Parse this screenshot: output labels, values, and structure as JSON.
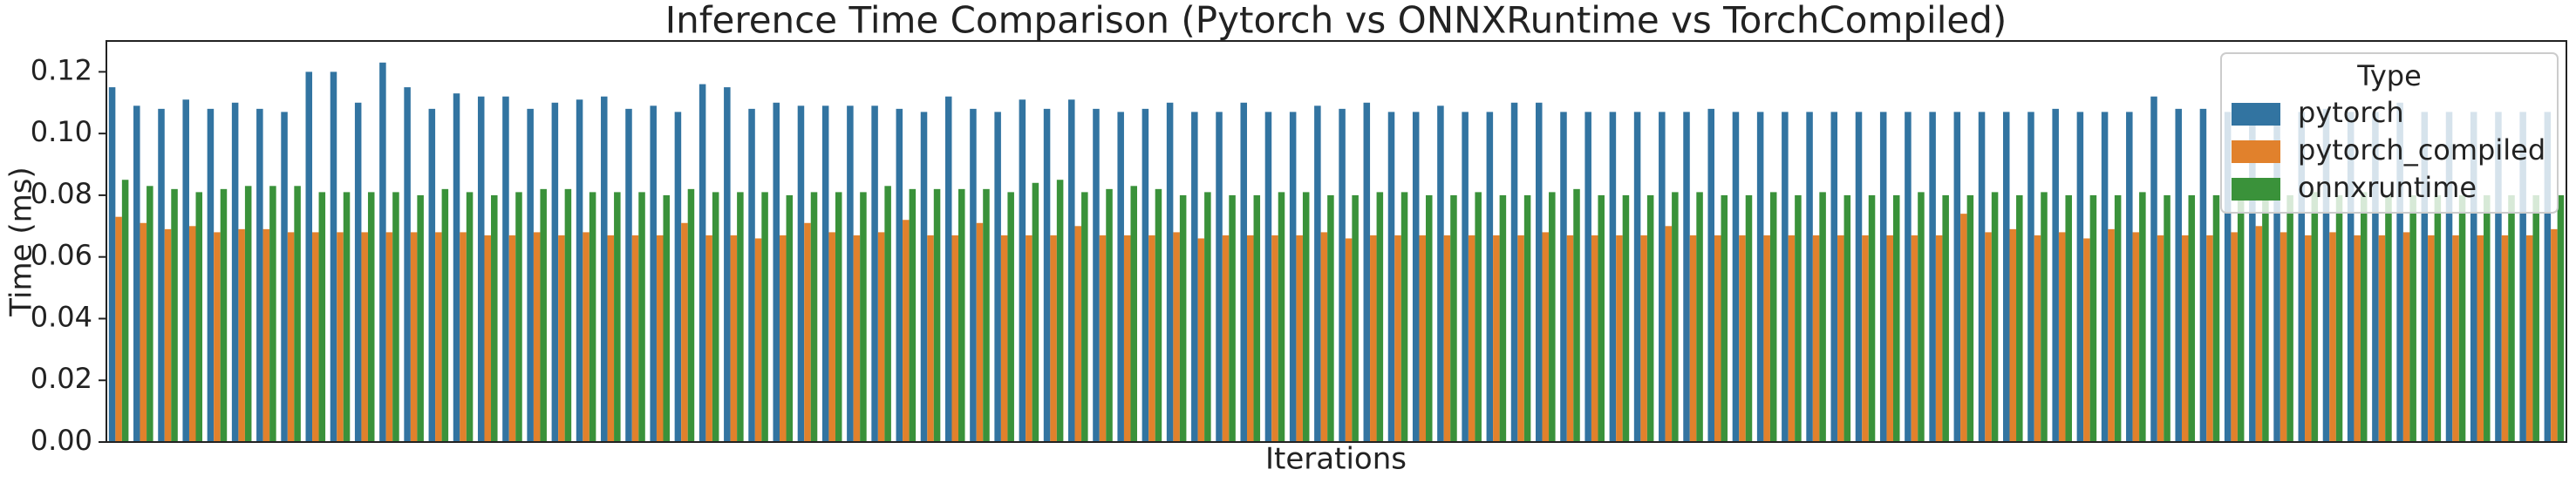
{
  "chart_data": {
    "type": "bar",
    "title": "Inference Time Comparison (Pytorch vs ONNXRuntime vs TorchCompiled)",
    "x_label": "Iterations",
    "y_label": "Time (ms)",
    "legend_title": "Type",
    "legend_position": "upper right",
    "categories": [
      null,
      null,
      null,
      null,
      null,
      null,
      null,
      null,
      null,
      null,
      null,
      null,
      null,
      null,
      null,
      null,
      null,
      null,
      null,
      null,
      null,
      null,
      null,
      null,
      null,
      null,
      null,
      null,
      null,
      null,
      null,
      null,
      null,
      null,
      null,
      null,
      null,
      null,
      null,
      null,
      null,
      null,
      null,
      null,
      null,
      null,
      null,
      null,
      null,
      null,
      null,
      null,
      null,
      null,
      null,
      null,
      null,
      null,
      null,
      null,
      null,
      null,
      null,
      null,
      null,
      null,
      null,
      null,
      null,
      null,
      null,
      null,
      null,
      null,
      null,
      null,
      null,
      null,
      null,
      null,
      null,
      null,
      null,
      null,
      null,
      null,
      null,
      null,
      null,
      null,
      null,
      null,
      null,
      null,
      null,
      null,
      null,
      null,
      null,
      null
    ],
    "series": [
      {
        "name": "pytorch",
        "color": "#3274a1",
        "values": [
          0.115,
          0.109,
          0.108,
          0.111,
          0.108,
          0.11,
          0.108,
          0.107,
          0.12,
          0.12,
          0.11,
          0.123,
          0.115,
          0.108,
          0.113,
          0.112,
          0.112,
          0.108,
          0.11,
          0.111,
          0.112,
          0.108,
          0.109,
          0.107,
          0.116,
          0.115,
          0.108,
          0.11,
          0.109,
          0.109,
          0.109,
          0.109,
          0.108,
          0.107,
          0.112,
          0.108,
          0.107,
          0.111,
          0.108,
          0.111,
          0.108,
          0.107,
          0.108,
          0.11,
          0.107,
          0.107,
          0.11,
          0.107,
          0.107,
          0.109,
          0.108,
          0.11,
          0.107,
          0.107,
          0.109,
          0.107,
          0.107,
          0.11,
          0.11,
          0.107,
          0.107,
          0.107,
          0.107,
          0.107,
          0.107,
          0.108,
          0.107,
          0.107,
          0.107,
          0.107,
          0.107,
          0.107,
          0.107,
          0.107,
          0.107,
          0.107,
          0.107,
          0.107,
          0.107,
          0.108,
          0.107,
          0.107,
          0.107,
          0.112,
          0.108,
          0.108,
          0.107,
          0.107,
          0.108,
          0.107,
          0.108,
          0.107,
          0.107,
          0.11,
          0.107,
          0.107,
          0.107,
          0.107,
          0.107,
          0.107
        ]
      },
      {
        "name": "pytorch_compiled",
        "color": "#e1812c",
        "values": [
          0.073,
          0.071,
          0.069,
          0.07,
          0.068,
          0.069,
          0.069,
          0.068,
          0.068,
          0.068,
          0.068,
          0.068,
          0.068,
          0.068,
          0.068,
          0.067,
          0.067,
          0.068,
          0.067,
          0.068,
          0.067,
          0.067,
          0.067,
          0.071,
          0.067,
          0.067,
          0.066,
          0.067,
          0.071,
          0.068,
          0.067,
          0.068,
          0.072,
          0.067,
          0.067,
          0.071,
          0.067,
          0.067,
          0.067,
          0.07,
          0.067,
          0.067,
          0.067,
          0.068,
          0.066,
          0.067,
          0.067,
          0.067,
          0.067,
          0.068,
          0.066,
          0.067,
          0.067,
          0.067,
          0.067,
          0.067,
          0.067,
          0.067,
          0.068,
          0.067,
          0.067,
          0.067,
          0.067,
          0.07,
          0.067,
          0.067,
          0.067,
          0.067,
          0.067,
          0.067,
          0.067,
          0.067,
          0.067,
          0.067,
          0.067,
          0.074,
          0.068,
          0.069,
          0.067,
          0.068,
          0.066,
          0.069,
          0.068,
          0.067,
          0.067,
          0.067,
          0.068,
          0.07,
          0.068,
          0.067,
          0.068,
          0.067,
          0.067,
          0.068,
          0.067,
          0.067,
          0.067,
          0.067,
          0.067,
          0.069
        ]
      },
      {
        "name": "onnxruntime",
        "color": "#3a923a",
        "values": [
          0.085,
          0.083,
          0.082,
          0.081,
          0.082,
          0.083,
          0.083,
          0.083,
          0.081,
          0.081,
          0.081,
          0.081,
          0.08,
          0.082,
          0.081,
          0.08,
          0.081,
          0.082,
          0.082,
          0.081,
          0.081,
          0.081,
          0.08,
          0.082,
          0.081,
          0.081,
          0.081,
          0.08,
          0.081,
          0.081,
          0.081,
          0.083,
          0.082,
          0.082,
          0.082,
          0.082,
          0.081,
          0.084,
          0.085,
          0.081,
          0.082,
          0.083,
          0.082,
          0.08,
          0.081,
          0.08,
          0.08,
          0.081,
          0.081,
          0.08,
          0.08,
          0.081,
          0.081,
          0.08,
          0.08,
          0.081,
          0.08,
          0.08,
          0.081,
          0.082,
          0.08,
          0.08,
          0.08,
          0.081,
          0.081,
          0.08,
          0.08,
          0.081,
          0.08,
          0.081,
          0.08,
          0.08,
          0.08,
          0.081,
          0.08,
          0.08,
          0.081,
          0.08,
          0.081,
          0.08,
          0.08,
          0.08,
          0.081,
          0.08,
          0.08,
          0.08,
          0.081,
          0.08,
          0.08,
          0.081,
          0.08,
          0.081,
          0.08,
          0.08,
          0.08,
          0.08,
          0.08,
          0.08,
          0.08,
          0.08
        ]
      }
    ],
    "ylim": [
      0,
      0.13
    ],
    "yticks": [
      {
        "value": 0,
        "label": "0.00"
      },
      0.02,
      0.04,
      0.06,
      0.08,
      {
        "value": 0.1,
        "label": "0.10"
      },
      0.12
    ],
    "grid": false
  }
}
